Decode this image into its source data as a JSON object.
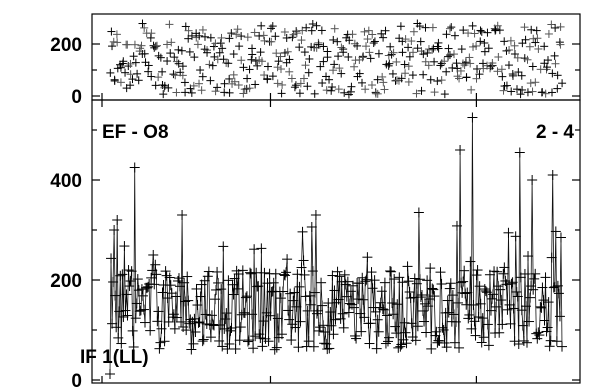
{
  "chart_data": [
    {
      "type": "scatter",
      "panel": "top",
      "title": "",
      "xlabel": "",
      "ylabel": "",
      "xlim": [
        0,
        470
      ],
      "ylim": [
        0,
        300
      ],
      "y_ticks": [
        0,
        200
      ],
      "y_minor_ticks": [
        100
      ],
      "grid": false,
      "n_points": 440,
      "y_distribution": "roughly uniform between about 0 and 280",
      "series": [
        {
          "name": "",
          "color": "#000000",
          "marker": "+"
        }
      ]
    },
    {
      "type": "line",
      "panel": "bottom",
      "title": "",
      "xlabel": "",
      "ylabel": "",
      "xlim": [
        0,
        470
      ],
      "ylim": [
        0,
        540
      ],
      "y_ticks": [
        0,
        200,
        400
      ],
      "y_minor_ticks": [
        100,
        300,
        500
      ],
      "grid": false,
      "marker": "+",
      "n_points": 440,
      "typical_range": [
        50,
        300
      ],
      "annotations": [
        "EF - O8",
        "2 - 4",
        "IF 1(LL)"
      ],
      "series": [
        {
          "name": "",
          "color": "#000000"
        }
      ]
    }
  ]
}
